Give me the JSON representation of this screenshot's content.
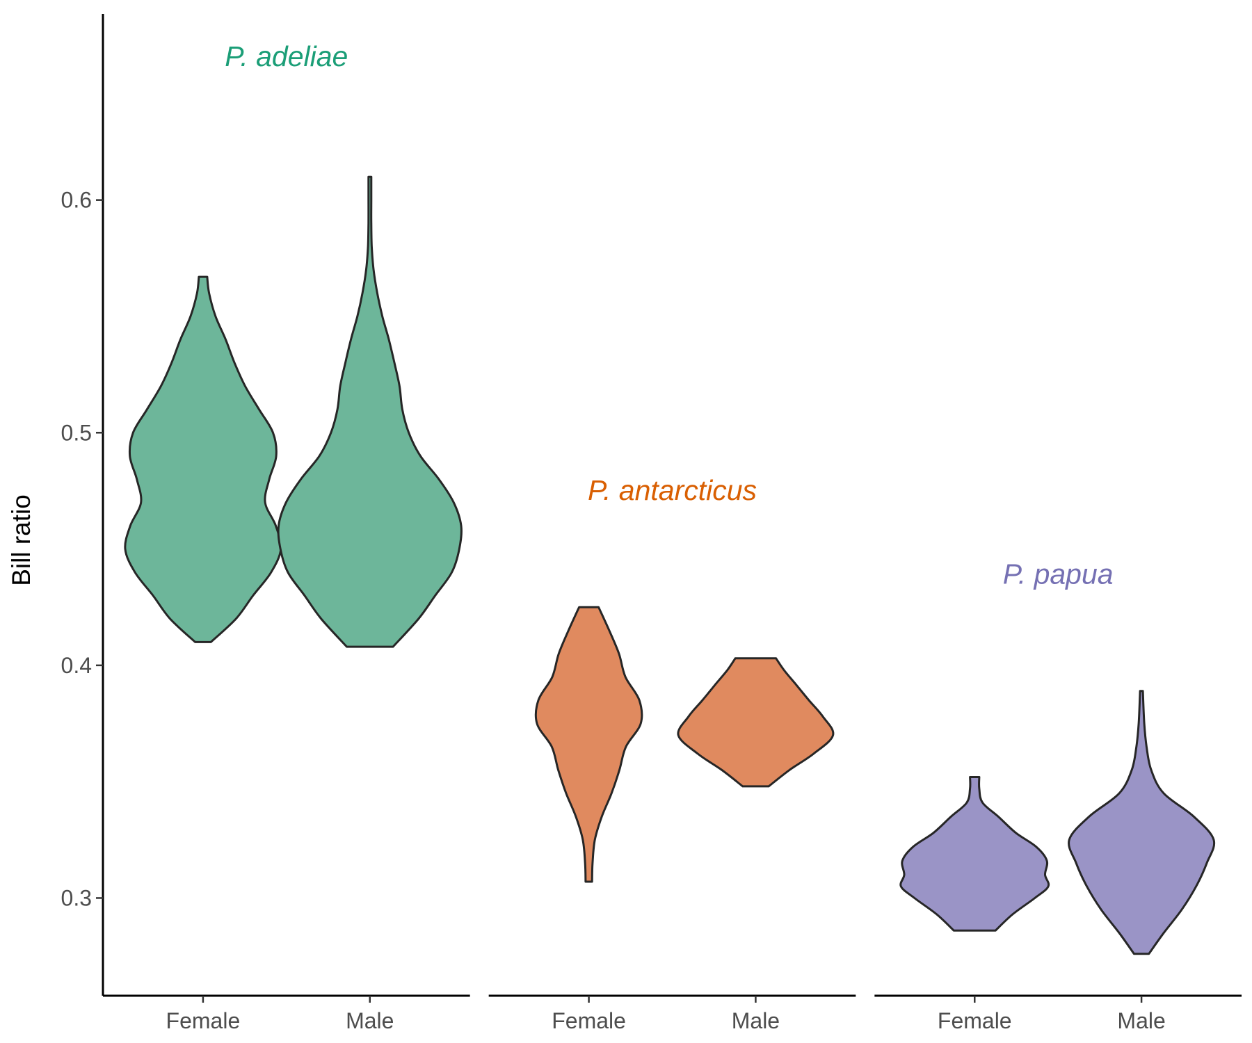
{
  "chart_data": {
    "type": "violin",
    "ylabel": "Bill ratio",
    "ylim": [
      0.258,
      0.68
    ],
    "yticks": [
      0.3,
      0.4,
      0.5,
      0.6
    ],
    "grid": false,
    "legend": "none",
    "facets": [
      {
        "species": "P. adeliae",
        "color": "#1B9E77",
        "fill": "#6DB69A",
        "categories": [
          "Female",
          "Male"
        ],
        "violins": [
          {
            "category": "Female",
            "min": 0.41,
            "max": 0.567,
            "profile": [
              [
                0.41,
                0.017
              ],
              [
                0.42,
                0.071
              ],
              [
                0.43,
                0.108
              ],
              [
                0.44,
                0.147
              ],
              [
                0.45,
                0.168
              ],
              [
                0.46,
                0.157
              ],
              [
                0.47,
                0.134
              ],
              [
                0.48,
                0.143
              ],
              [
                0.49,
                0.158
              ],
              [
                0.5,
                0.151
              ],
              [
                0.51,
                0.121
              ],
              [
                0.52,
                0.091
              ],
              [
                0.53,
                0.068
              ],
              [
                0.54,
                0.049
              ],
              [
                0.55,
                0.027
              ],
              [
                0.56,
                0.013
              ],
              [
                0.567,
                0.009
              ]
            ]
          },
          {
            "category": "Male",
            "min": 0.408,
            "max": 0.61,
            "profile": [
              [
                0.408,
                0.05
              ],
              [
                0.42,
                0.105
              ],
              [
                0.43,
                0.141
              ],
              [
                0.44,
                0.177
              ],
              [
                0.45,
                0.193
              ],
              [
                0.46,
                0.197
              ],
              [
                0.47,
                0.181
              ],
              [
                0.48,
                0.149
              ],
              [
                0.49,
                0.109
              ],
              [
                0.5,
                0.084
              ],
              [
                0.51,
                0.07
              ],
              [
                0.52,
                0.064
              ],
              [
                0.53,
                0.053
              ],
              [
                0.54,
                0.041
              ],
              [
                0.55,
                0.027
              ],
              [
                0.56,
                0.016
              ],
              [
                0.57,
                0.008
              ],
              [
                0.58,
                0.004
              ],
              [
                0.59,
                0.003
              ],
              [
                0.6,
                0.003
              ],
              [
                0.61,
                0.003
              ]
            ]
          }
        ]
      },
      {
        "species": "P. antarcticus",
        "color": "#D95F02",
        "fill": "#E08A5F",
        "categories": [
          "Female",
          "Male"
        ],
        "violins": [
          {
            "category": "Female",
            "min": 0.307,
            "max": 0.425,
            "profile": [
              [
                0.307,
                0.007
              ],
              [
                0.315,
                0.008
              ],
              [
                0.325,
                0.013
              ],
              [
                0.335,
                0.028
              ],
              [
                0.345,
                0.049
              ],
              [
                0.355,
                0.066
              ],
              [
                0.365,
                0.08
              ],
              [
                0.375,
                0.112
              ],
              [
                0.385,
                0.109
              ],
              [
                0.395,
                0.079
              ],
              [
                0.405,
                0.065
              ],
              [
                0.415,
                0.044
              ],
              [
                0.425,
                0.021
              ]
            ]
          },
          {
            "category": "Male",
            "min": 0.348,
            "max": 0.403,
            "profile": [
              [
                0.348,
                0.028
              ],
              [
                0.355,
                0.073
              ],
              [
                0.362,
                0.125
              ],
              [
                0.37,
                0.167
              ],
              [
                0.378,
                0.145
              ],
              [
                0.385,
                0.115
              ],
              [
                0.392,
                0.086
              ],
              [
                0.398,
                0.061
              ],
              [
                0.403,
                0.044
              ]
            ]
          }
        ]
      },
      {
        "species": "P. papua",
        "color": "#7570B3",
        "fill": "#9A94C6",
        "categories": [
          "Female",
          "Male"
        ],
        "violins": [
          {
            "category": "Female",
            "min": 0.286,
            "max": 0.352,
            "profile": [
              [
                0.286,
                0.045
              ],
              [
                0.293,
                0.082
              ],
              [
                0.3,
                0.13
              ],
              [
                0.305,
                0.159
              ],
              [
                0.31,
                0.152
              ],
              [
                0.316,
                0.156
              ],
              [
                0.322,
                0.133
              ],
              [
                0.328,
                0.089
              ],
              [
                0.335,
                0.051
              ],
              [
                0.341,
                0.017
              ],
              [
                0.347,
                0.01
              ],
              [
                0.352,
                0.01
              ]
            ]
          },
          {
            "category": "Male",
            "min": 0.276,
            "max": 0.389,
            "profile": [
              [
                0.276,
                0.016
              ],
              [
                0.285,
                0.048
              ],
              [
                0.295,
                0.087
              ],
              [
                0.305,
                0.118
              ],
              [
                0.315,
                0.141
              ],
              [
                0.325,
                0.156
              ],
              [
                0.335,
                0.113
              ],
              [
                0.345,
                0.048
              ],
              [
                0.355,
                0.021
              ],
              [
                0.365,
                0.011
              ],
              [
                0.375,
                0.006
              ],
              [
                0.389,
                0.003
              ]
            ]
          }
        ]
      }
    ]
  }
}
